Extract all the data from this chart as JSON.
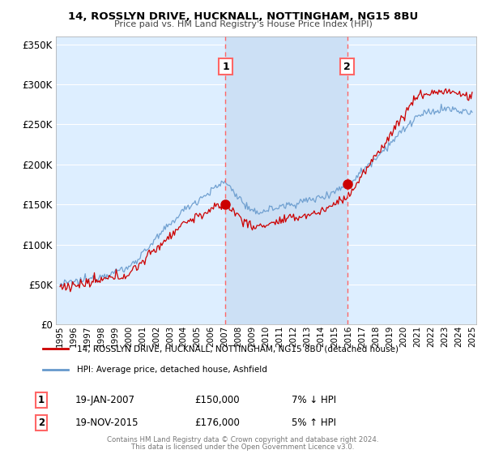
{
  "title": "14, ROSSLYN DRIVE, HUCKNALL, NOTTINGHAM, NG15 8BU",
  "subtitle": "Price paid vs. HM Land Registry's House Price Index (HPI)",
  "ylabel_ticks": [
    "£0",
    "£50K",
    "£100K",
    "£150K",
    "£200K",
    "£250K",
    "£300K",
    "£350K"
  ],
  "ytick_values": [
    0,
    50000,
    100000,
    150000,
    200000,
    250000,
    300000,
    350000
  ],
  "ylim": [
    0,
    360000
  ],
  "xlim_start": 1994.7,
  "xlim_end": 2025.3,
  "sale1_year": 2007.05,
  "sale1_price": 150000,
  "sale1_label": "19-JAN-2007",
  "sale1_amount": "£150,000",
  "sale1_pct": "7% ↓ HPI",
  "sale2_year": 2015.9,
  "sale2_price": 176000,
  "sale2_label": "19-NOV-2015",
  "sale2_amount": "£176,000",
  "sale2_pct": "5% ↑ HPI",
  "legend_line1": "14, ROSSLYN DRIVE, HUCKNALL, NOTTINGHAM, NG15 8BU (detached house)",
  "legend_line2": "HPI: Average price, detached house, Ashfield",
  "footer1": "Contains HM Land Registry data © Crown copyright and database right 2024.",
  "footer2": "This data is licensed under the Open Government Licence v3.0.",
  "red_color": "#cc0000",
  "blue_color": "#6699cc",
  "bg_color": "#ddeeff",
  "bg_color_between": "#cce0f5",
  "grid_color": "#ffffff",
  "vline_color": "#ff6666"
}
